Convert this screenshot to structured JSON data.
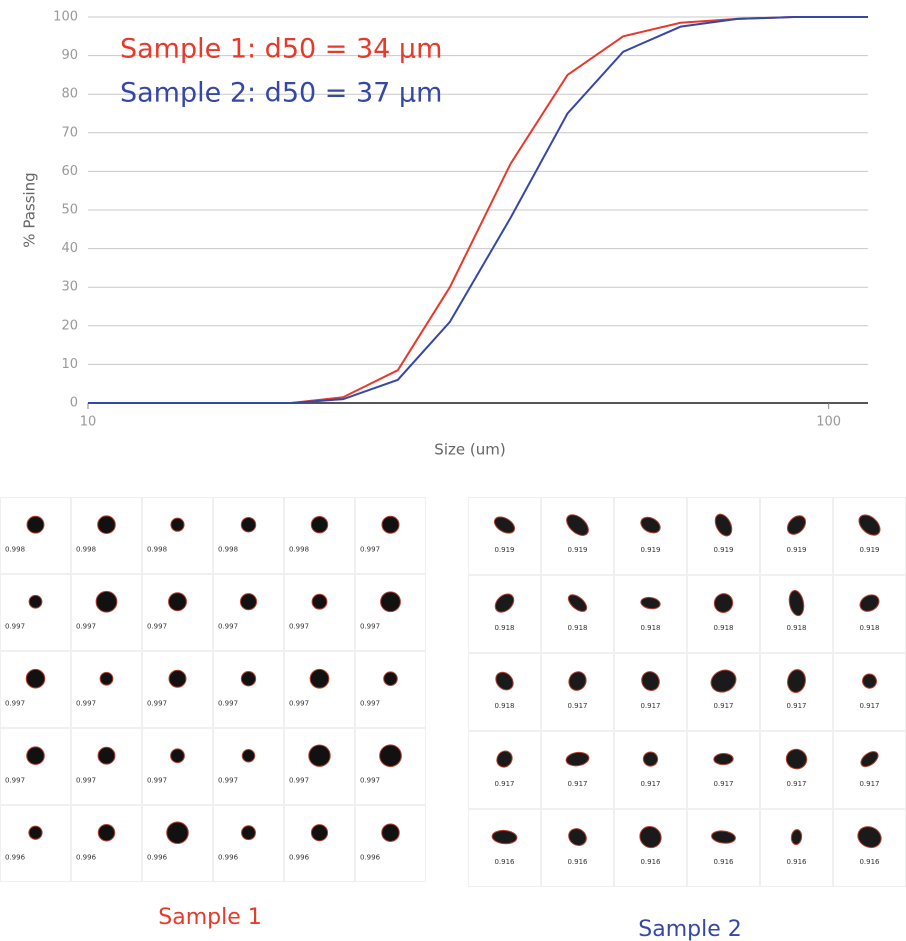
{
  "chart_data": {
    "type": "line",
    "x_label": "Size (um)",
    "y_label": "% Passing",
    "annotations": [
      {
        "text": "Sample 1: d50 = 34 μm",
        "color": "#e8392a"
      },
      {
        "text": "Sample 2: d50 = 37 μm",
        "color": "#3548a8"
      }
    ],
    "x": [
      10,
      18.8,
      22.1,
      26.2,
      30.8,
      37.2,
      44.4,
      52.8,
      63.1,
      75.3,
      89.7,
      113
    ],
    "series": [
      {
        "color": "#e8392a",
        "values": [
          0,
          0,
          1.5,
          8.5,
          30,
          62,
          85,
          95,
          98.5,
          99.5,
          100,
          100
        ]
      },
      {
        "color": "#3548a8",
        "values": [
          0,
          0,
          1,
          6,
          21,
          48,
          75,
          91,
          97.5,
          99.5,
          100,
          100
        ]
      }
    ],
    "xlim": [
      10,
      113
    ],
    "xticks": [
      10,
      100
    ],
    "x_log": true,
    "ylim": [
      0,
      100
    ],
    "yticks": [
      0,
      10,
      20,
      30,
      40,
      50,
      60,
      70,
      80,
      90,
      100
    ],
    "grid": true
  },
  "particle_images": [
    {
      "caption": "Sample 1",
      "color": "#e8392a",
      "labels": [
        [
          "0.998",
          "0.998",
          "0.998",
          "0.998",
          "0.998",
          "0.997"
        ],
        [
          "0.997",
          "0.997",
          "0.997",
          "0.997",
          "0.997",
          "0.997"
        ],
        [
          "0.997",
          "0.997",
          "0.997",
          "0.997",
          "0.997",
          "0.997"
        ],
        [
          "0.997",
          "0.997",
          "0.997",
          "0.997",
          "0.997",
          "0.997"
        ],
        [
          "0.996",
          "0.996",
          "0.996",
          "0.996",
          "0.996",
          "0.996"
        ]
      ]
    },
    {
      "caption": "Sample 2",
      "color": "#3548a8",
      "labels": [
        [
          "0.919",
          "0.919",
          "0.919",
          "0.919",
          "0.919",
          "0.919"
        ],
        [
          "0.918",
          "0.918",
          "0.918",
          "0.918",
          "0.918",
          "0.918"
        ],
        [
          "0.918",
          "0.917",
          "0.917",
          "0.917",
          "0.917",
          "0.917"
        ],
        [
          "0.917",
          "0.917",
          "0.917",
          "0.917",
          "0.917",
          "0.917"
        ],
        [
          "0.916",
          "0.916",
          "0.916",
          "0.916",
          "0.916",
          "0.916"
        ]
      ]
    }
  ]
}
